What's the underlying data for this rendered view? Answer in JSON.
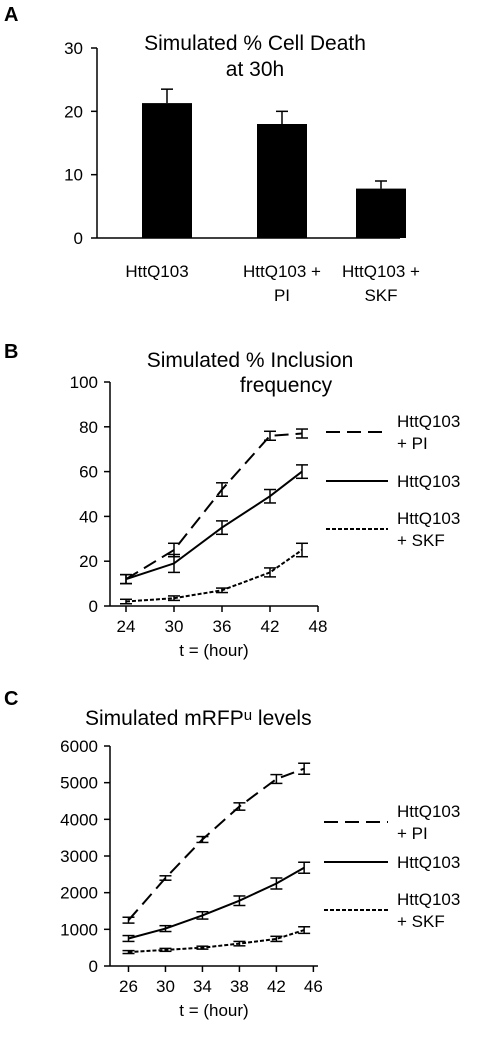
{
  "panels": [
    {
      "label": "A",
      "chart_data": {
        "type": "bar",
        "title": [
          "Simulated % Cell Death",
          "at 30h"
        ],
        "categories": [
          [
            "HttQ103"
          ],
          [
            "HttQ103 +",
            "PI"
          ],
          [
            "HttQ103 +",
            "SKF"
          ]
        ],
        "values": [
          21.3,
          18.0,
          7.8
        ],
        "errors": [
          2.2,
          2.0,
          1.2
        ],
        "ylim": [
          0,
          30
        ],
        "yticks": [
          0,
          10,
          20,
          30
        ],
        "xlabel": "",
        "ylabel": "",
        "bar_color": "#000000"
      }
    },
    {
      "label": "B",
      "chart_data": {
        "type": "line",
        "title": [
          "Simulated % Inclusion",
          "frequency"
        ],
        "x": [
          24,
          30,
          36,
          42,
          46
        ],
        "xticks": [
          24,
          30,
          36,
          42,
          48
        ],
        "xlim": [
          22,
          48
        ],
        "ylim": [
          0,
          100
        ],
        "yticks": [
          0,
          20,
          40,
          60,
          80,
          100
        ],
        "xlabel": "t = (hour)",
        "ylabel": "",
        "series": [
          {
            "name": [
              "HttQ103",
              "+ PI"
            ],
            "style": "long-dash",
            "values": [
              12,
              25,
              52,
              76,
              77
            ],
            "errors": [
              2,
              3,
              3,
              2,
              2
            ]
          },
          {
            "name": [
              "HttQ103"
            ],
            "style": "solid",
            "values": [
              12,
              19,
              35,
              49,
              60
            ],
            "errors": [
              2,
              4,
              3,
              3,
              3
            ]
          },
          {
            "name": [
              "HttQ103",
              "+ SKF"
            ],
            "style": "short-dash",
            "values": [
              2,
              3.5,
              7,
              15,
              25
            ],
            "errors": [
              1,
              1,
              1,
              2,
              3
            ]
          }
        ]
      }
    },
    {
      "label": "C",
      "chart_data": {
        "type": "line",
        "title": [
          "Simulated mRFP",
          "u",
          " levels"
        ],
        "x": [
          26,
          30,
          34,
          38,
          42,
          45
        ],
        "xticks": [
          26,
          30,
          34,
          38,
          42,
          46
        ],
        "xlim": [
          24,
          46.5
        ],
        "ylim": [
          0,
          6000
        ],
        "yticks": [
          0,
          1000,
          2000,
          3000,
          4000,
          5000,
          6000
        ],
        "xlabel": "t = (hour)",
        "ylabel": "",
        "series": [
          {
            "name": [
              "HttQ103",
              "+ PI"
            ],
            "style": "long-dash",
            "values": [
              1250,
              2400,
              3450,
              4350,
              5100,
              5380
            ],
            "errors": [
              80,
              60,
              80,
              100,
              120,
              150
            ]
          },
          {
            "name": [
              "HttQ103"
            ],
            "style": "solid",
            "values": [
              750,
              1020,
              1380,
              1780,
              2250,
              2680
            ],
            "errors": [
              80,
              80,
              100,
              130,
              150,
              150
            ]
          },
          {
            "name": [
              "HttQ103",
              "+ SKF"
            ],
            "style": "short-dash",
            "values": [
              380,
              440,
              500,
              610,
              740,
              980
            ],
            "errors": [
              40,
              40,
              40,
              60,
              70,
              90
            ]
          }
        ]
      }
    }
  ]
}
